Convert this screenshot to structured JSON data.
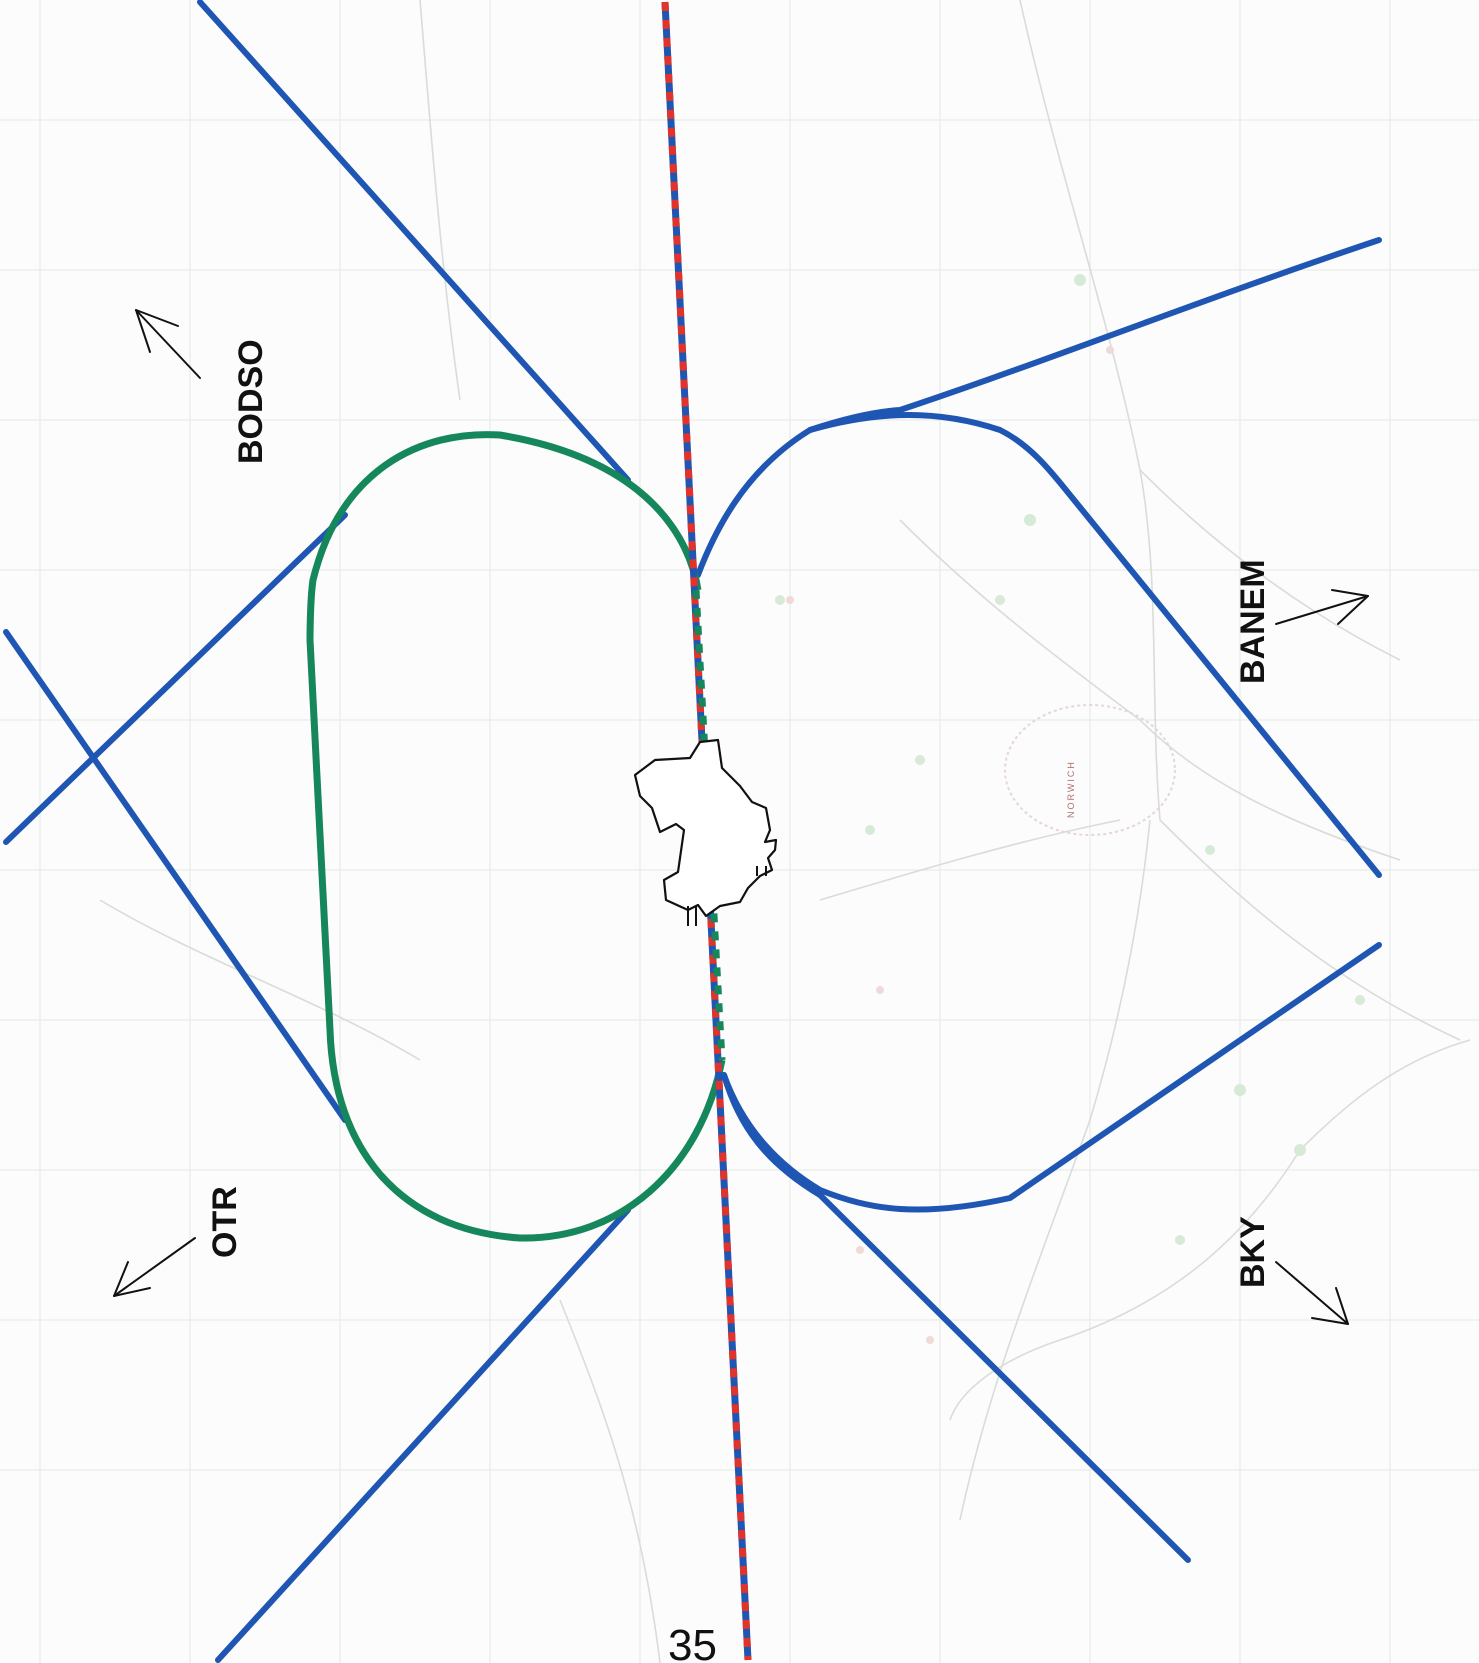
{
  "map": {
    "route_labels": {
      "bodso": "BODSO",
      "banem": "BANEM",
      "otr": "OTR",
      "bky": "BKY"
    },
    "runway_number": "35",
    "town_name": "NORWICH",
    "colors": {
      "departure_route": "#1f56b3",
      "green_circuit": "#15875a",
      "runway_dash_red": "#e0332b",
      "base_map_road": "#d9dcd9",
      "base_map_grid": "#e9ece9"
    }
  }
}
